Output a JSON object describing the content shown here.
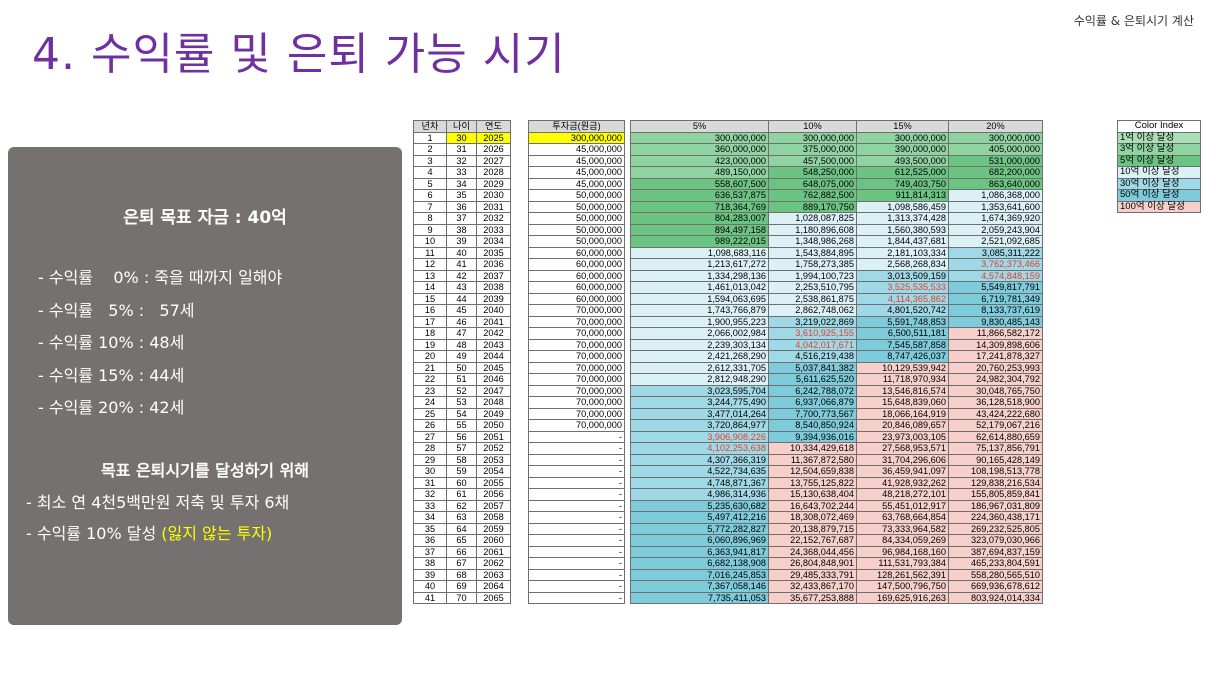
{
  "header": {
    "top_right": "수익률 & 은퇴시기 계산",
    "title": "4. 수익률 및 은퇴 가능 시기"
  },
  "panel": {
    "goal": "은퇴 목표 자금 : 40억",
    "rates": [
      "- 수익률    0% : 죽을 때까지 일해야",
      "- 수익률   5% :   57세",
      "- 수익률 10% : 48세",
      "- 수익률 15% : 44세",
      "- 수익률 20% : 42세"
    ],
    "subtitle": "목표 은퇴시기를 달성하기 위해",
    "bullet1": "- 최소 연 4천5백만원 저축 및 투자 6채",
    "bullet2_prefix": "- 수익률 10% 달성 ",
    "bullet2_highlight": "(잃지 않는 투자)"
  },
  "colors": {
    "green": [
      "#a9dfb4",
      "#8fd3a0",
      "#6cc483"
    ],
    "blue": [
      "#dcf1f6",
      "#bde4ee",
      "#9fd8e6",
      "#7dcbdb"
    ],
    "pink": "#f6cfcb",
    "red_text": "#e0402a",
    "title": "#7030a0",
    "panel": "#767171"
  },
  "table": {
    "headers": [
      "년차",
      "나이",
      "연도",
      "투자금(원금)",
      "5%",
      "10%",
      "15%",
      "20%"
    ],
    "rows": [
      [
        "1",
        "30",
        "2025",
        "300,000,000",
        "300,000,000",
        "300,000,000",
        "300,000,000",
        "300,000,000"
      ],
      [
        "2",
        "31",
        "2026",
        "45,000,000",
        "360,000,000",
        "375,000,000",
        "390,000,000",
        "405,000,000"
      ],
      [
        "3",
        "32",
        "2027",
        "45,000,000",
        "423,000,000",
        "457,500,000",
        "493,500,000",
        "531,000,000"
      ],
      [
        "4",
        "33",
        "2028",
        "45,000,000",
        "489,150,000",
        "548,250,000",
        "612,525,000",
        "682,200,000"
      ],
      [
        "5",
        "34",
        "2029",
        "45,000,000",
        "558,607,500",
        "648,075,000",
        "749,403,750",
        "863,640,000"
      ],
      [
        "6",
        "35",
        "2030",
        "50,000,000",
        "636,537,875",
        "762,882,500",
        "911,814,313",
        "1,086,368,000"
      ],
      [
        "7",
        "36",
        "2031",
        "50,000,000",
        "718,364,769",
        "889,170,750",
        "1,098,586,459",
        "1,353,641,600"
      ],
      [
        "8",
        "37",
        "2032",
        "50,000,000",
        "804,283,007",
        "1,028,087,825",
        "1,313,374,428",
        "1,674,369,920"
      ],
      [
        "9",
        "38",
        "2033",
        "50,000,000",
        "894,497,158",
        "1,180,896,608",
        "1,560,380,593",
        "2,059,243,904"
      ],
      [
        "10",
        "39",
        "2034",
        "50,000,000",
        "989,222,015",
        "1,348,986,268",
        "1,844,437,681",
        "2,521,092,685"
      ],
      [
        "11",
        "40",
        "2035",
        "60,000,000",
        "1,098,683,116",
        "1,543,884,895",
        "2,181,103,334",
        "3,085,311,222"
      ],
      [
        "12",
        "41",
        "2036",
        "60,000,000",
        "1,213,617,272",
        "1,758,273,385",
        "2,568,268,834",
        "3,762,373,466"
      ],
      [
        "13",
        "42",
        "2037",
        "60,000,000",
        "1,334,298,136",
        "1,994,100,723",
        "3,013,509,159",
        "4,574,848,159"
      ],
      [
        "14",
        "43",
        "2038",
        "60,000,000",
        "1,461,013,042",
        "2,253,510,795",
        "3,525,535,533",
        "5,549,817,791"
      ],
      [
        "15",
        "44",
        "2039",
        "60,000,000",
        "1,594,063,695",
        "2,538,861,875",
        "4,114,365,862",
        "6,719,781,349"
      ],
      [
        "16",
        "45",
        "2040",
        "70,000,000",
        "1,743,766,879",
        "2,862,748,062",
        "4,801,520,742",
        "8,133,737,619"
      ],
      [
        "17",
        "46",
        "2041",
        "70,000,000",
        "1,900,955,223",
        "3,219,022,869",
        "5,591,748,853",
        "9,830,485,143"
      ],
      [
        "18",
        "47",
        "2042",
        "70,000,000",
        "2,066,002,984",
        "3,610,925,155",
        "6,500,511,181",
        "11,866,582,172"
      ],
      [
        "19",
        "48",
        "2043",
        "70,000,000",
        "2,239,303,134",
        "4,042,017,671",
        "7,545,587,858",
        "14,309,898,606"
      ],
      [
        "20",
        "49",
        "2044",
        "70,000,000",
        "2,421,268,290",
        "4,516,219,438",
        "8,747,426,037",
        "17,241,878,327"
      ],
      [
        "21",
        "50",
        "2045",
        "70,000,000",
        "2,612,331,705",
        "5,037,841,382",
        "10,129,539,942",
        "20,760,253,993"
      ],
      [
        "22",
        "51",
        "2046",
        "70,000,000",
        "2,812,948,290",
        "5,611,625,520",
        "11,718,970,934",
        "24,982,304,792"
      ],
      [
        "23",
        "52",
        "2047",
        "70,000,000",
        "3,023,595,704",
        "6,242,788,072",
        "13,546,816,574",
        "30,048,765,750"
      ],
      [
        "24",
        "53",
        "2048",
        "70,000,000",
        "3,244,775,490",
        "6,937,066,879",
        "15,648,839,060",
        "36,128,518,900"
      ],
      [
        "25",
        "54",
        "2049",
        "70,000,000",
        "3,477,014,264",
        "7,700,773,567",
        "18,066,164,919",
        "43,424,222,680"
      ],
      [
        "26",
        "55",
        "2050",
        "70,000,000",
        "3,720,864,977",
        "8,540,850,924",
        "20,846,089,657",
        "52,179,067,216"
      ],
      [
        "27",
        "56",
        "2051",
        "-",
        "3,906,908,226",
        "9,394,936,016",
        "23,973,003,105",
        "62,614,880,659"
      ],
      [
        "28",
        "57",
        "2052",
        "-",
        "4,102,253,638",
        "10,334,429,618",
        "27,568,953,571",
        "75,137,856,791"
      ],
      [
        "29",
        "58",
        "2053",
        "-",
        "4,307,366,319",
        "11,367,872,580",
        "31,704,296,606",
        "90,165,428,149"
      ],
      [
        "30",
        "59",
        "2054",
        "-",
        "4,522,734,635",
        "12,504,659,838",
        "36,459,941,097",
        "108,198,513,778"
      ],
      [
        "31",
        "60",
        "2055",
        "-",
        "4,748,871,367",
        "13,755,125,822",
        "41,928,932,262",
        "129,838,216,534"
      ],
      [
        "32",
        "61",
        "2056",
        "-",
        "4,986,314,936",
        "15,130,638,404",
        "48,218,272,101",
        "155,805,859,841"
      ],
      [
        "33",
        "62",
        "2057",
        "-",
        "5,235,630,682",
        "16,643,702,244",
        "55,451,012,917",
        "186,967,031,809"
      ],
      [
        "34",
        "63",
        "2058",
        "-",
        "5,497,412,216",
        "18,308,072,469",
        "63,768,664,854",
        "224,360,438,171"
      ],
      [
        "35",
        "64",
        "2059",
        "-",
        "5,772,282,827",
        "20,138,879,715",
        "73,333,964,582",
        "269,232,525,805"
      ],
      [
        "36",
        "65",
        "2060",
        "-",
        "6,060,896,969",
        "22,152,767,687",
        "84,334,059,269",
        "323,079,030,966"
      ],
      [
        "37",
        "66",
        "2061",
        "-",
        "6,363,941,817",
        "24,368,044,456",
        "96,984,168,160",
        "387,694,837,159"
      ],
      [
        "38",
        "67",
        "2062",
        "-",
        "6,682,138,908",
        "26,804,848,901",
        "111,531,793,384",
        "465,233,804,591"
      ],
      [
        "39",
        "68",
        "2063",
        "-",
        "7,016,245,853",
        "29,485,333,791",
        "128,261,562,391",
        "558,280,565,510"
      ],
      [
        "40",
        "69",
        "2064",
        "-",
        "7,367,058,146",
        "32,433,867,170",
        "147,500,796,750",
        "669,936,678,612"
      ],
      [
        "41",
        "70",
        "2065",
        "-",
        "7,735,411,053",
        "35,677,253,888",
        "169,625,916,263",
        "803,924,014,334"
      ]
    ]
  },
  "legend": {
    "title": "Color Index",
    "items": [
      "1억 이상 달성",
      "3억 이상 달성",
      "5억 이상 달성",
      "10억 이상 달성",
      "30억 이상 달성",
      "50억 이상 달성",
      "100억 이상 달성"
    ]
  }
}
